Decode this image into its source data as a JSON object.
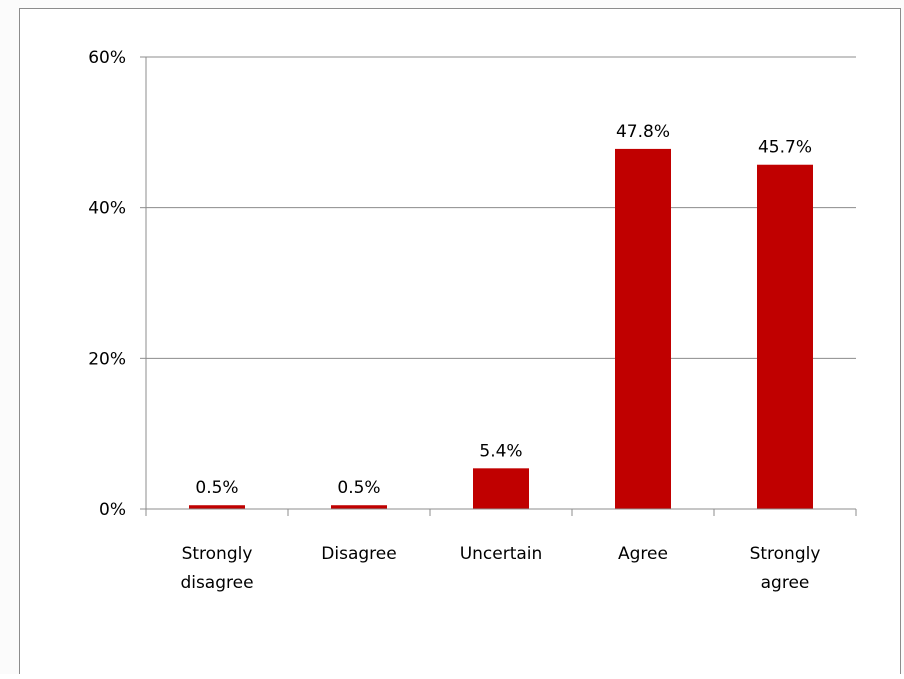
{
  "chart_data": {
    "type": "bar",
    "categories": [
      [
        "Strongly",
        "disagree"
      ],
      [
        "Disagree"
      ],
      [
        "Uncertain"
      ],
      [
        "Agree"
      ],
      [
        "Strongly",
        "agree"
      ]
    ],
    "values": [
      0.5,
      0.5,
      5.4,
      47.8,
      45.7
    ],
    "data_labels": [
      "0.5%",
      "0.5%",
      "5.4%",
      "47.8%",
      "45.7%"
    ],
    "y_ticks": [
      "0%",
      "20%",
      "40%",
      "60%"
    ],
    "y_tick_values": [
      0,
      20,
      40,
      60
    ],
    "ylim": [
      0,
      60
    ],
    "grid": true,
    "legend": false,
    "bar_color": "#c00000"
  }
}
